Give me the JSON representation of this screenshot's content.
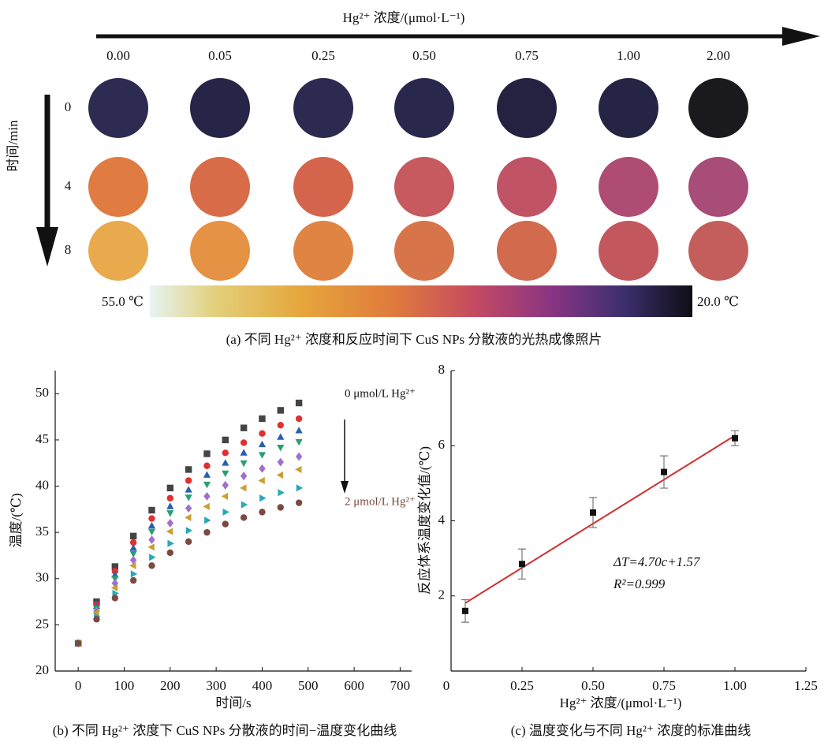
{
  "panel_a": {
    "title": "Hg²⁺ 浓度/(μmol·L⁻¹)",
    "columns": [
      "0.00",
      "0.05",
      "0.25",
      "0.50",
      "0.75",
      "1.00",
      "2.00"
    ],
    "row_axis_label": "时间/min",
    "rows": [
      "0",
      "4",
      "8"
    ],
    "colors": [
      [
        "#2d2b52",
        "#262447",
        "#2c2a50",
        "#29284c",
        "#242240",
        "#262444",
        "#1a1a1e"
      ],
      [
        "#e07c42",
        "#d86c48",
        "#d4644c",
        "#c65a5e",
        "#c05466",
        "#ae4c74",
        "#a84c78"
      ],
      [
        "#e8aa4c",
        "#e69244",
        "#e08444",
        "#d8744a",
        "#d26a4e",
        "#c2585e",
        "#c45e5c"
      ]
    ],
    "colorbar_min_label": "55.0 ℃",
    "colorbar_max_label": "20.0 ℃",
    "caption": "(a) 不同 Hg²⁺ 浓度和反应时间下 CuS NPs 分散液的光热成像照片"
  },
  "chart_data": [
    {
      "type": "scatter",
      "caption": "(b) 不同 Hg²⁺ 浓度下 CuS NPs 分散液的时间−温度变化曲线",
      "x_label": "时间/s",
      "y_label": "温度/(℃)",
      "xlim": [
        -50,
        725
      ],
      "ylim": [
        20,
        52.5
      ],
      "xticks": [
        0,
        100,
        200,
        300,
        400,
        500,
        600,
        700
      ],
      "yticks": [
        20,
        25,
        30,
        35,
        40,
        45,
        50
      ],
      "annotations": [
        "0 μmol/L Hg²⁺",
        "2 μmol/L Hg²⁺"
      ],
      "x": [
        0,
        40,
        80,
        120,
        160,
        200,
        240,
        280,
        320,
        360,
        400,
        440,
        480
      ],
      "series": [
        {
          "color": "#444444",
          "marker": "square",
          "values": [
            23,
            27.5,
            31.3,
            34.6,
            37.4,
            39.8,
            41.8,
            43.5,
            45.0,
            46.3,
            47.3,
            48.2,
            49.0
          ]
        },
        {
          "color": "#e03030",
          "marker": "circle",
          "values": [
            23,
            27.2,
            30.8,
            33.9,
            36.5,
            38.7,
            40.6,
            42.2,
            43.6,
            44.7,
            45.7,
            46.6,
            47.3
          ]
        },
        {
          "color": "#2a5fb0",
          "marker": "up",
          "values": [
            23,
            27.0,
            30.4,
            33.3,
            35.7,
            37.8,
            39.6,
            41.2,
            42.5,
            43.6,
            44.5,
            45.3,
            46.0
          ]
        },
        {
          "color": "#28a070",
          "marker": "down",
          "values": [
            23,
            26.8,
            30.0,
            32.7,
            35.1,
            37.1,
            38.8,
            40.2,
            41.4,
            42.5,
            43.4,
            44.2,
            44.8
          ]
        },
        {
          "color": "#a070d0",
          "marker": "diamond",
          "values": [
            23,
            26.5,
            29.5,
            32.0,
            34.2,
            36.0,
            37.6,
            38.9,
            40.1,
            41.1,
            41.9,
            42.6,
            43.2
          ]
        },
        {
          "color": "#c8a030",
          "marker": "left",
          "values": [
            23,
            26.3,
            29.0,
            31.4,
            33.4,
            35.1,
            36.6,
            37.8,
            38.9,
            39.8,
            40.6,
            41.2,
            41.8
          ]
        },
        {
          "color": "#2aa8b8",
          "marker": "right",
          "values": [
            23,
            25.9,
            28.4,
            30.5,
            32.3,
            33.8,
            35.2,
            36.3,
            37.2,
            38.0,
            38.7,
            39.3,
            39.8
          ]
        },
        {
          "color": "#7a4a40",
          "marker": "circle",
          "values": [
            23,
            25.6,
            27.9,
            29.8,
            31.4,
            32.8,
            34.0,
            35.0,
            35.9,
            36.6,
            37.2,
            37.7,
            38.2
          ]
        }
      ]
    },
    {
      "type": "errorbar",
      "caption": "(c) 温度变化与不同 Hg²⁺ 浓度的标准曲线",
      "x_label": "Hg²⁺ 浓度/(μmol·L⁻¹)",
      "y_label": "反应体系温度变化值/(℃)",
      "xlim": [
        0,
        1.25
      ],
      "ylim": [
        0,
        8
      ],
      "xticks": [
        0,
        0.25,
        {
          "value": 0.5,
          "label": "0.50"
        },
        0.75,
        {
          "value": 1,
          "label": "1.00"
        },
        1.25
      ],
      "yticks": [
        2,
        4,
        6,
        8
      ],
      "annotations": [
        "ΔT=4.70c+1.57",
        "R²=0.999"
      ],
      "x": [
        0.05,
        0.25,
        0.5,
        0.75,
        1.0
      ],
      "series": [
        {
          "color": "#111111",
          "values": [
            1.6,
            2.85,
            4.22,
            5.3,
            6.2
          ],
          "errors": [
            0.3,
            0.4,
            0.4,
            0.43,
            0.2
          ]
        }
      ],
      "fit": {
        "color": "#d03030",
        "x": [
          0.05,
          1.0
        ],
        "values": [
          1.81,
          6.27
        ]
      }
    }
  ]
}
